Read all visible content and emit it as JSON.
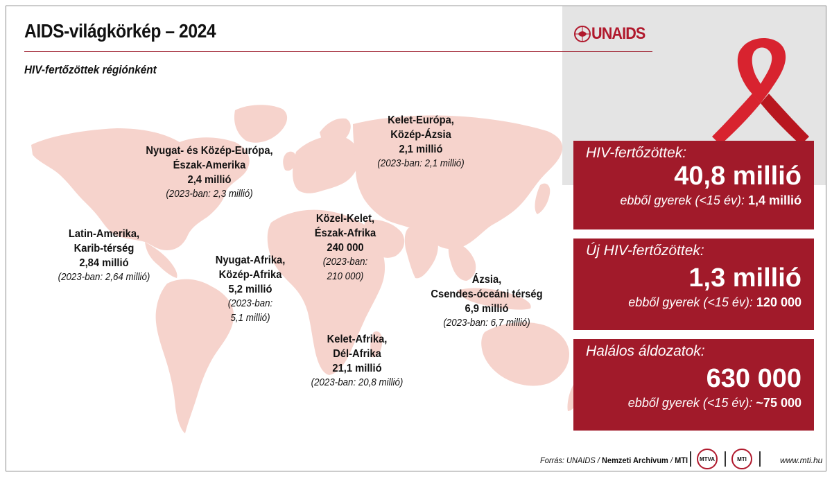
{
  "header": {
    "title": "AIDS-világkörkép – 2024",
    "subtitle": "HIV-fertőzöttek régiónként",
    "logo_text": "UNAIDS"
  },
  "regions": [
    {
      "id": "latin",
      "lines": [
        "Latin-Amerika,",
        "Karib-térség",
        "2,84 millió"
      ],
      "prev": [
        "(2023-ban: 2,64 millió)"
      ]
    },
    {
      "id": "west-europe",
      "lines": [
        "Nyugat- és Közép-Európa,",
        "Észak-Amerika",
        "2,4 millió"
      ],
      "prev": [
        "(2023-ban: 2,3 millió)"
      ]
    },
    {
      "id": "east-europe",
      "lines": [
        "Kelet-Európa,",
        "Közép-Ázsia",
        "2,1 millió"
      ],
      "prev": [
        "(2023-ban: 2,1 millió)"
      ]
    },
    {
      "id": "middle-east",
      "lines": [
        "Közel-Kelet,",
        "Észak-Afrika",
        "240 000"
      ],
      "prev": [
        "(2023-ban:",
        "210 000)"
      ]
    },
    {
      "id": "west-africa",
      "lines": [
        "Nyugat-Afrika,",
        "Közép-Afrika",
        "5,2 millió"
      ],
      "prev": [
        "(2023-ban:",
        "5,1 millió)"
      ]
    },
    {
      "id": "east-africa",
      "lines": [
        "Kelet-Afrika,",
        "Dél-Afrika",
        "21,1 millió"
      ],
      "prev": [
        "(2023-ban: 20,8 millió)"
      ]
    },
    {
      "id": "asia",
      "lines": [
        "Ázsia,",
        "Csendes-óceáni térség",
        "6,9 millió"
      ],
      "prev": [
        "(2023-ban: 6,7 millió)"
      ]
    }
  ],
  "stats": [
    {
      "id": "hiv",
      "heading": "HIV-fertőzöttek:",
      "value": "40,8 millió",
      "child_label": "ebből gyerek (<15 év):",
      "child_value": "1,4 millió"
    },
    {
      "id": "new",
      "heading": "Új HIV-fertőzöttek:",
      "value": "1,3 millió",
      "child_label": "ebből gyerek (<15 év):",
      "child_value": "120 000"
    },
    {
      "id": "deaths",
      "heading": "Halálos áldozatok:",
      "value": "630 000",
      "child_label": "ebből gyerek (<15 év):",
      "child_value": "~75 000"
    }
  ],
  "footer": {
    "source_prefix": "Forrás: UNAIDS /",
    "source_bold": "Nemzeti Archívum",
    "source_sep": "/",
    "source_mti": "MTI",
    "badge1": "MTVA",
    "badge2": "MTI",
    "url": "www.mti.hu"
  },
  "colors": {
    "accent": "#a11a2a",
    "map_fill": "#f6d3cc",
    "ribbon": "#d8232f"
  }
}
